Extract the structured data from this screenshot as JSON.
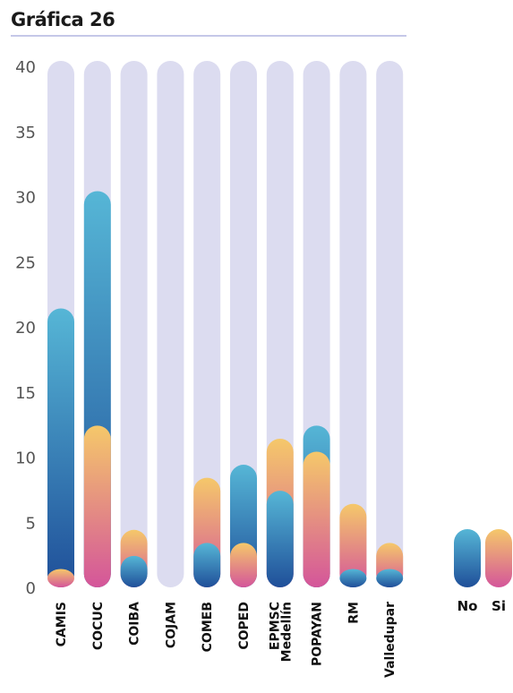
{
  "chart_data": {
    "type": "bar",
    "title": "Gráfica 26",
    "categories": [
      "CAMIS",
      "COCUC",
      "COIBA",
      "COJAM",
      "COMEB",
      "COPED",
      "EPMSC Medellín",
      "POPAYAN",
      "RM",
      "Valledupar"
    ],
    "series": [
      {
        "name": "No",
        "values": [
          21,
          30,
          2,
          0,
          3,
          9,
          7,
          12,
          1,
          1
        ]
      },
      {
        "name": "Si",
        "values": [
          1,
          12,
          4,
          0,
          8,
          3,
          11,
          10,
          6,
          3
        ]
      }
    ],
    "ylim": [
      0,
      40
    ],
    "yticks": [
      0,
      5,
      10,
      15,
      20,
      25,
      30,
      35,
      40
    ],
    "xlabel": "",
    "ylabel": "",
    "legend": "right",
    "grid": false,
    "colors": {
      "track": "#dcdcf0",
      "no_top": "#56b6d6",
      "no_bottom": "#1f4f99",
      "si_top": "#f5c86a",
      "si_bottom": "#d4559a"
    }
  }
}
